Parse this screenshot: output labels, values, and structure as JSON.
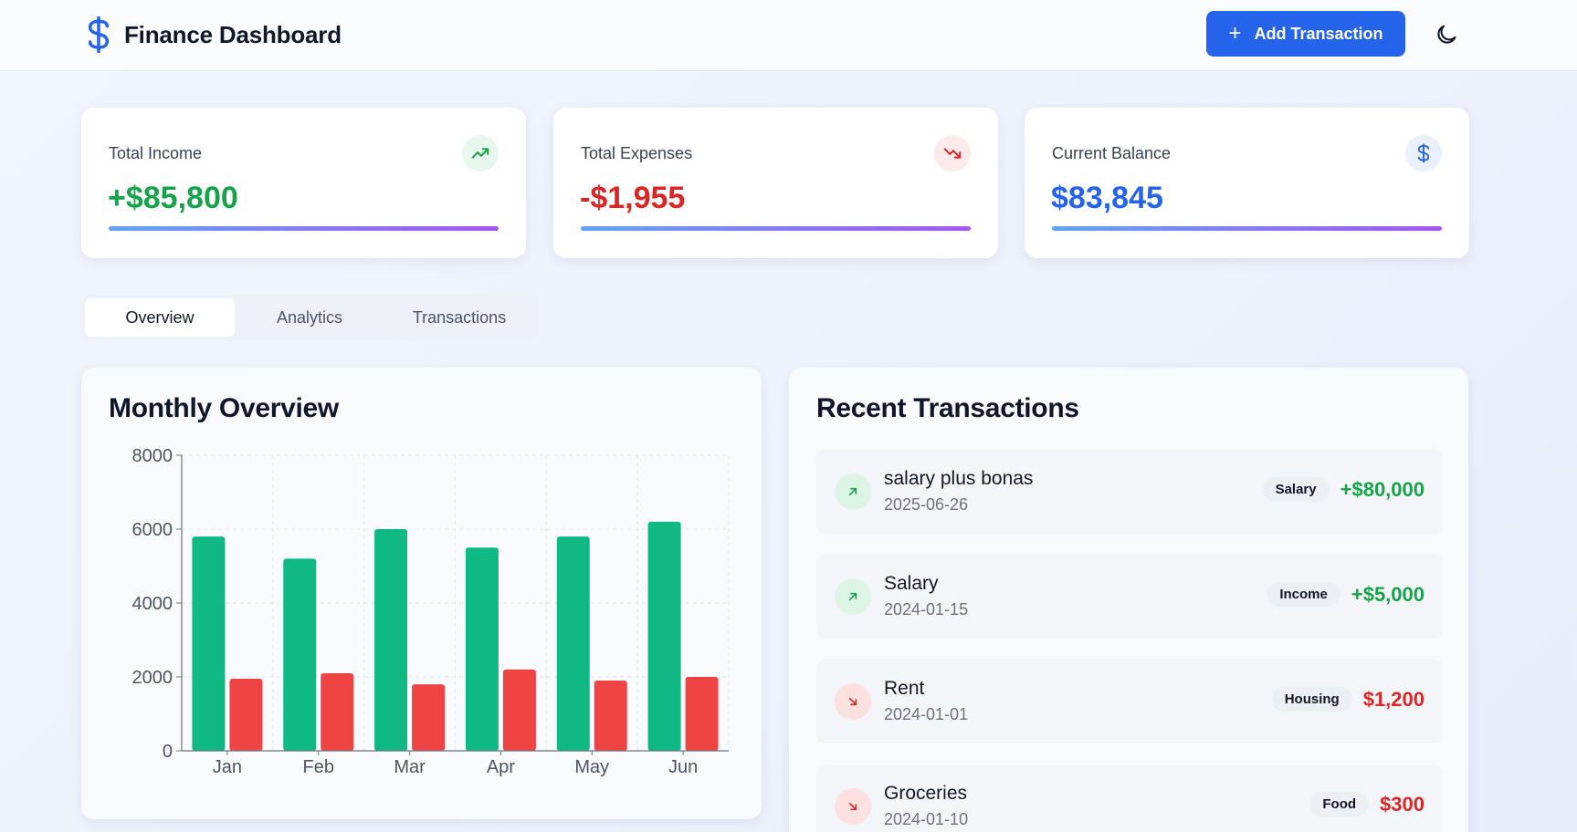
{
  "header": {
    "title": "Finance Dashboard",
    "add_button_label": "Add Transaction"
  },
  "stats": [
    {
      "label": "Total Income",
      "value": "+$85,800",
      "color": "#16a34a",
      "icon": "trending-up-icon"
    },
    {
      "label": "Total Expenses",
      "value": "-$1,955",
      "color": "#dc2626",
      "icon": "trending-down-icon"
    },
    {
      "label": "Current Balance",
      "value": "$83,845",
      "color": "#2563eb",
      "icon": "dollar-icon"
    }
  ],
  "tabs": [
    {
      "label": "Overview",
      "active": true
    },
    {
      "label": "Analytics",
      "active": false
    },
    {
      "label": "Transactions",
      "active": false
    }
  ],
  "monthly_overview": {
    "title": "Monthly Overview"
  },
  "chart_data": {
    "type": "bar",
    "categories": [
      "Jan",
      "Feb",
      "Mar",
      "Apr",
      "May",
      "Jun"
    ],
    "series": [
      {
        "values": [
          5800,
          5200,
          6000,
          5500,
          5800,
          6200
        ],
        "color": "#10b981"
      },
      {
        "values": [
          1950,
          2100,
          1800,
          2200,
          1900,
          2000
        ],
        "color": "#ef4444"
      }
    ],
    "y_ticks": [
      0,
      2000,
      4000,
      6000,
      8000
    ],
    "ylim": [
      0,
      8000
    ],
    "grid": true
  },
  "recent_transactions": {
    "title": "Recent Transactions",
    "items": [
      {
        "name": "salary plus bonas",
        "date": "2025-06-26",
        "category": "Salary",
        "amount": "+$80,000",
        "type": "income"
      },
      {
        "name": "Salary",
        "date": "2024-01-15",
        "category": "Income",
        "amount": "+$5,000",
        "type": "income"
      },
      {
        "name": "Rent",
        "date": "2024-01-01",
        "category": "Housing",
        "amount": "$1,200",
        "type": "expense"
      },
      {
        "name": "Groceries",
        "date": "2024-01-10",
        "category": "Food",
        "amount": "$300",
        "type": "expense"
      }
    ]
  },
  "colors": {
    "accent": "#2563eb",
    "income": "#16a34a",
    "expense": "#dc2626"
  }
}
